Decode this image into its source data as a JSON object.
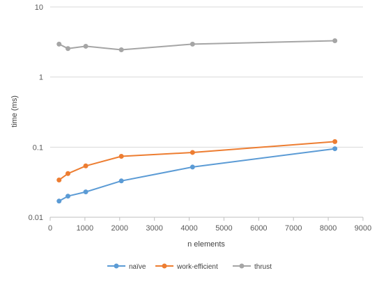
{
  "chart_data": {
    "type": "line",
    "title": "",
    "xlabel": "n elements",
    "ylabel": "time (ms)",
    "xlim": [
      0,
      9000
    ],
    "ylim": [
      0.01,
      10
    ],
    "yscale": "log",
    "grid": "horizontal",
    "legend_position": "bottom",
    "x_ticks": [
      "0",
      "1000",
      "2000",
      "3000",
      "4000",
      "5000",
      "6000",
      "7000",
      "8000",
      "9000"
    ],
    "y_ticks": [
      "0.01",
      "0.1",
      "1",
      "10"
    ],
    "x": [
      256,
      512,
      1024,
      2048,
      4096,
      8192
    ],
    "series": [
      {
        "name": "naïve",
        "color": "#5B9BD5",
        "values": [
          0.017,
          0.02,
          0.023,
          0.033,
          0.052,
          0.095
        ]
      },
      {
        "name": "work-efficient",
        "color": "#ED7D31",
        "values": [
          0.034,
          0.042,
          0.054,
          0.074,
          0.084,
          0.12
        ]
      },
      {
        "name": "thrust",
        "color": "#A5A5A5",
        "values": [
          2.95,
          2.55,
          2.75,
          2.45,
          2.95,
          3.3
        ]
      }
    ]
  }
}
